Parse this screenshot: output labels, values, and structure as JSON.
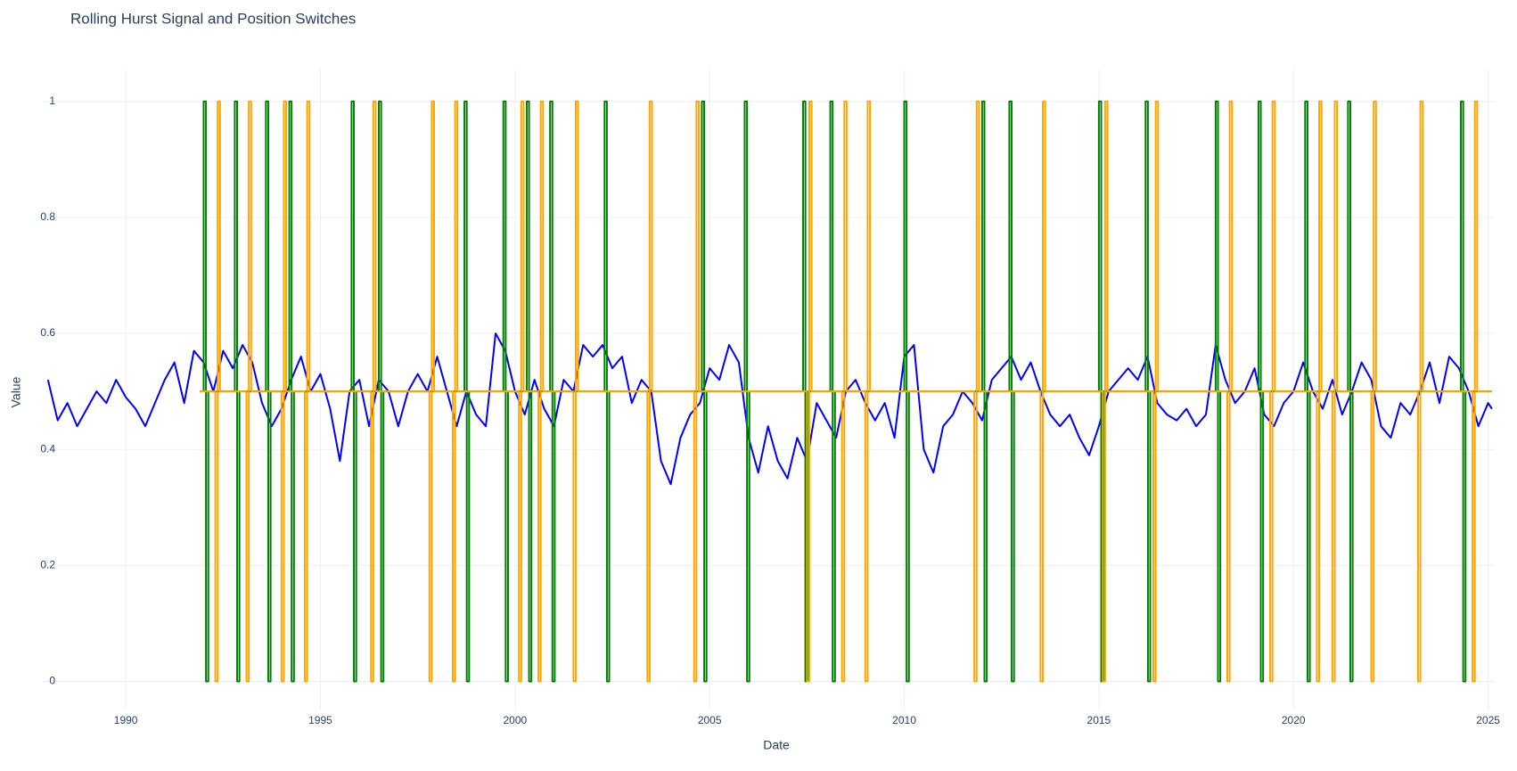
{
  "chart_data": {
    "type": "line",
    "title": "Rolling Hurst Signal and Position Switches",
    "x_label": "Date",
    "y_label": "Value",
    "xlim": [
      1987.89,
      2025.17
    ],
    "ylim": [
      -0.05,
      1.055
    ],
    "xticks": [
      1990,
      1995,
      2000,
      2005,
      2010,
      2015,
      2020,
      2025
    ],
    "yticks": [
      0,
      0.2,
      0.4,
      0.6,
      0.8,
      1
    ],
    "grid": true,
    "series": [
      {
        "color": "#0000ff",
        "x": [
          1988,
          1988.25,
          1988.5,
          1988.75,
          1989,
          1989.25,
          1989.5,
          1989.75,
          1990,
          1990.25,
          1990.5,
          1990.75,
          1991,
          1991.25,
          1991.5,
          1991.75,
          1992,
          1992.25,
          1992.5,
          1992.75,
          1993,
          1993.25,
          1993.5,
          1993.75,
          1994,
          1994.25,
          1994.5,
          1994.75,
          1995,
          1995.25,
          1995.5,
          1995.75,
          1996,
          1996.25,
          1996.5,
          1996.75,
          1997,
          1997.25,
          1997.5,
          1997.75,
          1998,
          1998.25,
          1998.5,
          1998.75,
          1999,
          1999.25,
          1999.5,
          1999.75,
          2000,
          2000.25,
          2000.5,
          2000.75,
          2001,
          2001.25,
          2001.5,
          2001.75,
          2002,
          2002.25,
          2002.5,
          2002.75,
          2003,
          2003.25,
          2003.5,
          2003.75,
          2004,
          2004.25,
          2004.5,
          2004.75,
          2005,
          2005.25,
          2005.5,
          2005.75,
          2006,
          2006.25,
          2006.5,
          2006.75,
          2007,
          2007.25,
          2007.5,
          2007.75,
          2008,
          2008.25,
          2008.5,
          2008.75,
          2009,
          2009.25,
          2009.5,
          2009.75,
          2010,
          2010.25,
          2010.5,
          2010.75,
          2011,
          2011.25,
          2011.5,
          2011.75,
          2012,
          2012.25,
          2012.5,
          2012.75,
          2013,
          2013.25,
          2013.5,
          2013.75,
          2014,
          2014.25,
          2014.5,
          2014.75,
          2015,
          2015.25,
          2015.5,
          2015.75,
          2016,
          2016.25,
          2016.5,
          2016.75,
          2017,
          2017.25,
          2017.5,
          2017.75,
          2018,
          2018.25,
          2018.5,
          2018.75,
          2019,
          2019.25,
          2019.5,
          2019.75,
          2020,
          2020.25,
          2020.5,
          2020.75,
          2021,
          2021.25,
          2021.5,
          2021.75,
          2022,
          2022.25,
          2022.5,
          2022.75,
          2023,
          2023.25,
          2023.5,
          2023.75,
          2024,
          2024.25,
          2024.5,
          2024.75,
          2025,
          2025.1
        ],
        "values": [
          0.52,
          0.45,
          0.48,
          0.44,
          0.47,
          0.5,
          0.48,
          0.52,
          0.49,
          0.47,
          0.44,
          0.48,
          0.52,
          0.55,
          0.48,
          0.57,
          0.55,
          0.5,
          0.57,
          0.54,
          0.58,
          0.55,
          0.48,
          0.44,
          0.47,
          0.52,
          0.56,
          0.5,
          0.53,
          0.47,
          0.38,
          0.5,
          0.52,
          0.44,
          0.52,
          0.5,
          0.44,
          0.5,
          0.53,
          0.5,
          0.56,
          0.5,
          0.44,
          0.5,
          0.46,
          0.44,
          0.6,
          0.57,
          0.5,
          0.46,
          0.52,
          0.47,
          0.44,
          0.52,
          0.5,
          0.58,
          0.56,
          0.58,
          0.54,
          0.56,
          0.48,
          0.52,
          0.5,
          0.38,
          0.34,
          0.42,
          0.46,
          0.48,
          0.54,
          0.52,
          0.58,
          0.55,
          0.42,
          0.36,
          0.44,
          0.38,
          0.35,
          0.42,
          0.38,
          0.48,
          0.45,
          0.42,
          0.5,
          0.52,
          0.48,
          0.45,
          0.48,
          0.42,
          0.56,
          0.58,
          0.4,
          0.36,
          0.44,
          0.46,
          0.5,
          0.48,
          0.45,
          0.52,
          0.54,
          0.56,
          0.52,
          0.55,
          0.5,
          0.46,
          0.44,
          0.46,
          0.42,
          0.39,
          0.44,
          0.5,
          0.52,
          0.54,
          0.52,
          0.56,
          0.48,
          0.46,
          0.45,
          0.47,
          0.44,
          0.46,
          0.58,
          0.52,
          0.48,
          0.5,
          0.54,
          0.46,
          0.44,
          0.48,
          0.5,
          0.55,
          0.5,
          0.47,
          0.52,
          0.46,
          0.5,
          0.55,
          0.52,
          0.44,
          0.42,
          0.48,
          0.46,
          0.5,
          0.55,
          0.48,
          0.56,
          0.54,
          0.5,
          0.44,
          0.48,
          0.47
        ]
      },
      {
        "color": "#008000",
        "x": [
          1991.9,
          1992,
          1992,
          1992.06,
          1992.06,
          1992.12,
          1992.12,
          1992.8,
          1992.8,
          1992.86,
          1992.86,
          1992.92,
          1992.92,
          1993.6,
          1993.6,
          1993.66,
          1993.66,
          1993.72,
          1993.72,
          1994.2,
          1994.2,
          1994.26,
          1994.26,
          1994.32,
          1994.32,
          1995.8,
          1995.8,
          1995.86,
          1995.86,
          1995.92,
          1995.92,
          1996.5,
          1996.5,
          1996.56,
          1996.56,
          1996.62,
          1996.62,
          1998.7,
          1998.7,
          1998.76,
          1998.76,
          1998.82,
          1998.82,
          1999.7,
          1999.7,
          1999.76,
          1999.76,
          1999.82,
          1999.82,
          2000.3,
          2000.3,
          2000.36,
          2000.36,
          2000.42,
          2000.42,
          2000.9,
          2000.9,
          2000.96,
          2000.96,
          2001.02,
          2001.02,
          2002.3,
          2002.3,
          2002.36,
          2002.36,
          2002.42,
          2002.42,
          2004.8,
          2004.8,
          2004.86,
          2004.86,
          2004.92,
          2004.92,
          2005.9,
          2005.9,
          2005.96,
          2005.96,
          2006.02,
          2006.02,
          2007.4,
          2007.4,
          2007.46,
          2007.46,
          2007.52,
          2007.52,
          2008.1,
          2008.1,
          2008.16,
          2008.16,
          2008.22,
          2008.22,
          2010,
          2010,
          2010.06,
          2010.06,
          2010.12,
          2010.12,
          2012,
          2012,
          2012.06,
          2012.06,
          2012.12,
          2012.12,
          2012.7,
          2012.7,
          2012.76,
          2012.76,
          2012.82,
          2012.82,
          2015,
          2015,
          2015.06,
          2015.06,
          2015.12,
          2015.12,
          2016.2,
          2016.2,
          2016.26,
          2016.26,
          2016.32,
          2016.32,
          2018,
          2018,
          2018.06,
          2018.06,
          2018.12,
          2018.12,
          2019.1,
          2019.1,
          2019.16,
          2019.16,
          2019.22,
          2019.22,
          2020.3,
          2020.3,
          2020.36,
          2020.36,
          2020.42,
          2020.42,
          2021.4,
          2021.4,
          2021.46,
          2021.46,
          2021.52,
          2021.52,
          2024.3,
          2024.3,
          2024.36,
          2024.36,
          2024.42,
          2024.42,
          2025.1
        ],
        "values": [
          0.5,
          0.5,
          1,
          1,
          0,
          0,
          0.5,
          0.5,
          1,
          1,
          0,
          0,
          0.5,
          0.5,
          1,
          1,
          0,
          0,
          0.5,
          0.5,
          1,
          1,
          0,
          0,
          0.5,
          0.5,
          1,
          1,
          0,
          0,
          0.5,
          0.5,
          1,
          1,
          0,
          0,
          0.5,
          0.5,
          1,
          1,
          0,
          0,
          0.5,
          0.5,
          1,
          1,
          0,
          0,
          0.5,
          0.5,
          1,
          1,
          0,
          0,
          0.5,
          0.5,
          1,
          1,
          0,
          0,
          0.5,
          0.5,
          1,
          1,
          0,
          0,
          0.5,
          0.5,
          1,
          1,
          0,
          0,
          0.5,
          0.5,
          1,
          1,
          0,
          0,
          0.5,
          0.5,
          1,
          1,
          0,
          0,
          0.5,
          0.5,
          1,
          1,
          0,
          0,
          0.5,
          0.5,
          1,
          1,
          0,
          0,
          0.5,
          0.5,
          1,
          1,
          0,
          0,
          0.5,
          0.5,
          1,
          1,
          0,
          0,
          0.5,
          0.5,
          1,
          1,
          0,
          0,
          0.5,
          0.5,
          1,
          1,
          0,
          0,
          0.5,
          0.5,
          1,
          1,
          0,
          0,
          0.5,
          0.5,
          1,
          1,
          0,
          0,
          0.5,
          0.5,
          1,
          1,
          0,
          0,
          0.5,
          0.5,
          1,
          1,
          0,
          0,
          0.5,
          0.5,
          1,
          1,
          0,
          0,
          0.5,
          0.5
        ]
      },
      {
        "color": "#ffa500",
        "x": [
          1991.9,
          1992.3,
          1992.3,
          1992.36,
          1992.36,
          1992.42,
          1992.42,
          1993.1,
          1993.1,
          1993.16,
          1993.16,
          1993.22,
          1993.22,
          1994,
          1994,
          1994.06,
          1994.06,
          1994.12,
          1994.12,
          1994.6,
          1994.6,
          1994.66,
          1994.66,
          1994.72,
          1994.72,
          1996.3,
          1996.3,
          1996.36,
          1996.36,
          1996.42,
          1996.42,
          1997.8,
          1997.8,
          1997.86,
          1997.86,
          1997.92,
          1997.92,
          1998.4,
          1998.4,
          1998.46,
          1998.46,
          1998.52,
          1998.52,
          2000.1,
          2000.1,
          2000.16,
          2000.16,
          2000.22,
          2000.22,
          2000.6,
          2000.6,
          2000.66,
          2000.66,
          2000.72,
          2000.72,
          2001.5,
          2001.5,
          2001.56,
          2001.56,
          2001.62,
          2001.62,
          2003.4,
          2003.4,
          2003.46,
          2003.46,
          2003.52,
          2003.52,
          2004.6,
          2004.6,
          2004.66,
          2004.66,
          2004.72,
          2004.72,
          2007.5,
          2007.5,
          2007.56,
          2007.56,
          2007.62,
          2007.62,
          2008.4,
          2008.4,
          2008.46,
          2008.46,
          2008.52,
          2008.52,
          2009,
          2009,
          2009.06,
          2009.06,
          2009.12,
          2009.12,
          2011.8,
          2011.8,
          2011.86,
          2011.86,
          2011.92,
          2011.92,
          2013.5,
          2013.5,
          2013.56,
          2013.56,
          2013.62,
          2013.62,
          2015.1,
          2015.1,
          2015.16,
          2015.16,
          2015.22,
          2015.22,
          2016.4,
          2016.4,
          2016.46,
          2016.46,
          2016.52,
          2016.52,
          2018.3,
          2018.3,
          2018.36,
          2018.36,
          2018.42,
          2018.42,
          2019.4,
          2019.4,
          2019.46,
          2019.46,
          2019.52,
          2019.52,
          2020.6,
          2020.6,
          2020.66,
          2020.66,
          2020.72,
          2020.72,
          2021,
          2021,
          2021.06,
          2021.06,
          2021.12,
          2021.12,
          2022,
          2022,
          2022.06,
          2022.06,
          2022.12,
          2022.12,
          2023.2,
          2023.2,
          2023.26,
          2023.26,
          2023.32,
          2023.32,
          2024.6,
          2024.6,
          2024.66,
          2024.66,
          2024.72,
          2024.72,
          2025.1
        ],
        "values": [
          0.5,
          0.5,
          0,
          0,
          1,
          1,
          0.5,
          0.5,
          0,
          0,
          1,
          1,
          0.5,
          0.5,
          0,
          0,
          1,
          1,
          0.5,
          0.5,
          0,
          0,
          1,
          1,
          0.5,
          0.5,
          0,
          0,
          1,
          1,
          0.5,
          0.5,
          0,
          0,
          1,
          1,
          0.5,
          0.5,
          0,
          0,
          1,
          1,
          0.5,
          0.5,
          0,
          0,
          1,
          1,
          0.5,
          0.5,
          0,
          0,
          1,
          1,
          0.5,
          0.5,
          0,
          0,
          1,
          1,
          0.5,
          0.5,
          0,
          0,
          1,
          1,
          0.5,
          0.5,
          0,
          0,
          1,
          1,
          0.5,
          0.5,
          0,
          0,
          1,
          1,
          0.5,
          0.5,
          0,
          0,
          1,
          1,
          0.5,
          0.5,
          0,
          0,
          1,
          1,
          0.5,
          0.5,
          0,
          0,
          1,
          1,
          0.5,
          0.5,
          0,
          0,
          1,
          1,
          0.5,
          0.5,
          0,
          0,
          1,
          1,
          0.5,
          0.5,
          0,
          0,
          1,
          1,
          0.5,
          0.5,
          0,
          0,
          1,
          1,
          0.5,
          0.5,
          0,
          0,
          1,
          1,
          0.5,
          0.5,
          0,
          0,
          1,
          1,
          0.5,
          0.5,
          0,
          0,
          1,
          1,
          0.5,
          0.5,
          0,
          0,
          1,
          1,
          0.5,
          0.5,
          0,
          0,
          1,
          1,
          0.5,
          0.5,
          0,
          0,
          1,
          1,
          0.5,
          0.5
        ]
      }
    ]
  }
}
